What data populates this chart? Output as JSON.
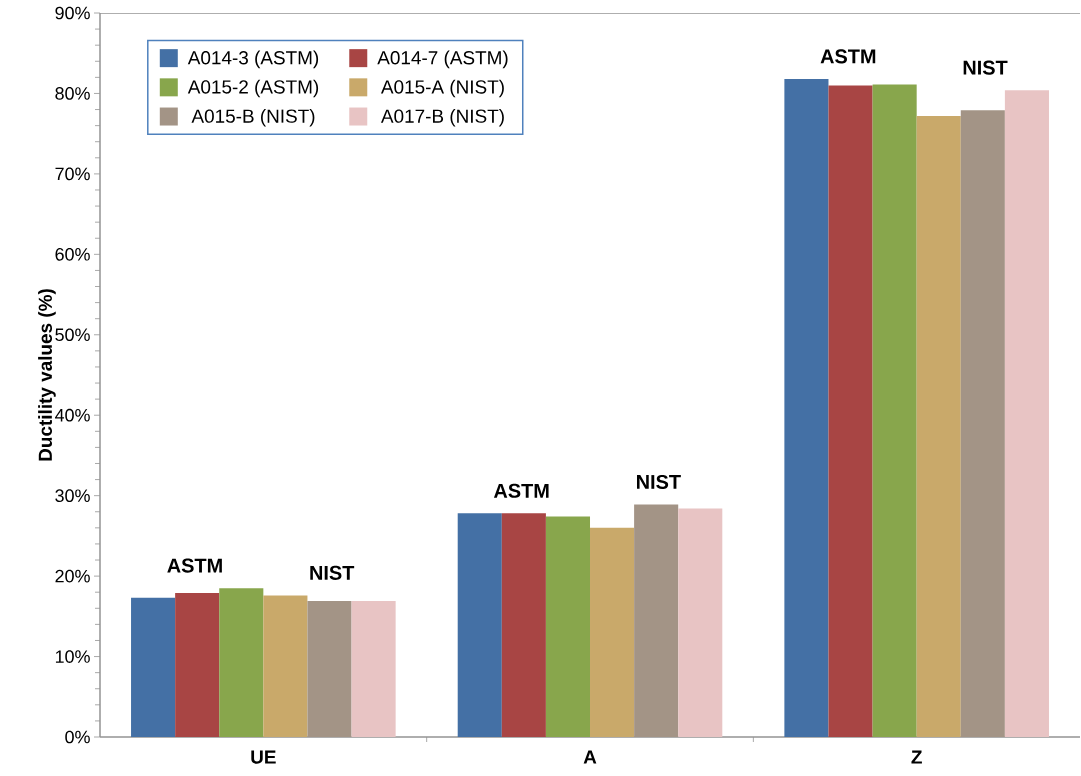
{
  "chart_data": {
    "type": "bar",
    "ylabel": "Ductility values (%)",
    "categories": [
      "UE",
      "A",
      "Z"
    ],
    "series": [
      {
        "name": "A014-3 (ASTM)",
        "color": "#4470a5",
        "values": [
          17.3,
          27.8,
          81.8
        ]
      },
      {
        "name": "A014-7 (ASTM)",
        "color": "#a84544",
        "values": [
          17.9,
          27.8,
          81.0
        ]
      },
      {
        "name": "A015-2 (ASTM)",
        "color": "#88a64c",
        "values": [
          18.5,
          27.4,
          81.1
        ]
      },
      {
        "name": "A015-A (NIST)",
        "color": "#c9a96a",
        "values": [
          17.6,
          26.0,
          77.2
        ]
      },
      {
        "name": "A015-B (NIST)",
        "color": "#a39486",
        "values": [
          16.9,
          28.9,
          77.9
        ]
      },
      {
        "name": "A017-B (NIST)",
        "color": "#e8c4c4",
        "values": [
          16.9,
          28.4,
          80.4
        ]
      }
    ],
    "ylim": [
      0,
      90
    ],
    "yticks": [
      {
        "value": 0,
        "label": "0%"
      },
      {
        "value": 2,
        "label": null
      },
      {
        "value": 4,
        "label": null
      },
      {
        "value": 6,
        "label": null
      },
      {
        "value": 8,
        "label": null
      },
      {
        "value": 10,
        "label": "10%"
      },
      {
        "value": 12,
        "label": null
      },
      {
        "value": 14,
        "label": null
      },
      {
        "value": 16,
        "label": null
      },
      {
        "value": 18,
        "label": null
      },
      {
        "value": 20,
        "label": "20%"
      },
      {
        "value": 22,
        "label": null
      },
      {
        "value": 24,
        "label": null
      },
      {
        "value": 26,
        "label": null
      },
      {
        "value": 28,
        "label": null
      },
      {
        "value": 30,
        "label": "30%"
      },
      {
        "value": 32,
        "label": null
      },
      {
        "value": 34,
        "label": null
      },
      {
        "value": 36,
        "label": null
      },
      {
        "value": 38,
        "label": null
      },
      {
        "value": 40,
        "label": "40%"
      },
      {
        "value": 42,
        "label": null
      },
      {
        "value": 44,
        "label": null
      },
      {
        "value": 46,
        "label": null
      },
      {
        "value": 48,
        "label": null
      },
      {
        "value": 50,
        "label": "50%"
      },
      {
        "value": 52,
        "label": null
      },
      {
        "value": 54,
        "label": null
      },
      {
        "value": 56,
        "label": null
      },
      {
        "value": 58,
        "label": null
      },
      {
        "value": 60,
        "label": "60%"
      },
      {
        "value": 62,
        "label": null
      },
      {
        "value": 64,
        "label": null
      },
      {
        "value": 66,
        "label": null
      },
      {
        "value": 68,
        "label": null
      },
      {
        "value": 70,
        "label": "70%"
      },
      {
        "value": 72,
        "label": null
      },
      {
        "value": 74,
        "label": null
      },
      {
        "value": 76,
        "label": null
      },
      {
        "value": 78,
        "label": null
      },
      {
        "value": 80,
        "label": "80%"
      },
      {
        "value": 82,
        "label": null
      },
      {
        "value": 84,
        "label": null
      },
      {
        "value": 86,
        "label": null
      },
      {
        "value": 88,
        "label": null
      },
      {
        "value": 90,
        "label": "90%"
      }
    ],
    "annotations": [
      "ASTM",
      "NIST",
      "ASTM",
      "NIST",
      "ASTM",
      "NIST"
    ],
    "legend": "top left",
    "grid": false
  }
}
